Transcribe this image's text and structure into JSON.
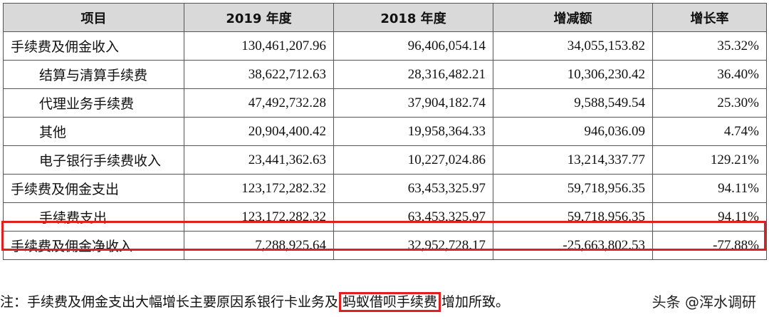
{
  "table": {
    "headers": [
      "项目",
      "2019 年度",
      "2018 年度",
      "增减额",
      "增长率"
    ],
    "rows": [
      {
        "item": "手续费及佣金收入",
        "y2019": "130,461,207.96",
        "y2018": "96,406,054.14",
        "change": "34,055,153.82",
        "rate": "35.32%"
      },
      {
        "item": "结算与清算手续费",
        "y2019": "38,622,712.63",
        "y2018": "28,316,482.21",
        "change": "10,306,230.42",
        "rate": "36.40%"
      },
      {
        "item": "代理业务手续费",
        "y2019": "47,492,732.28",
        "y2018": "37,904,182.74",
        "change": "9,588,549.54",
        "rate": "25.30%"
      },
      {
        "item": "其他",
        "y2019": "20,904,400.42",
        "y2018": "19,958,364.33",
        "change": "946,036.09",
        "rate": "4.74%"
      },
      {
        "item": "电子银行手续费收入",
        "y2019": "23,441,362.63",
        "y2018": "10,227,024.86",
        "change": "13,214,337.77",
        "rate": "129.21%"
      },
      {
        "item": "手续费及佣金支出",
        "y2019": "123,172,282.32",
        "y2018": "63,453,325.97",
        "change": "59,718,956.35",
        "rate": "94.11%"
      },
      {
        "item": "手续费支出",
        "y2019": "123,172,282.32",
        "y2018": "63,453,325.97",
        "change": "59,718,956.35",
        "rate": "94.11%"
      },
      {
        "item": "手续费及佣金净收入",
        "y2019": "7,288,925.64",
        "y2018": "32,952,728.17",
        "change": "-25,663,802.53",
        "rate": "-77.88%"
      }
    ]
  },
  "footnote": {
    "prefix": "注：手续费及佣金支出大幅增长主要原因系银行卡业务及",
    "highlight": "蚂蚁借呗手续费",
    "suffix": "增加所致。"
  },
  "watermark": "头条 @浑水调研",
  "colors": {
    "header_bg": "#d9d9d9",
    "highlight_border": "#e02020"
  }
}
